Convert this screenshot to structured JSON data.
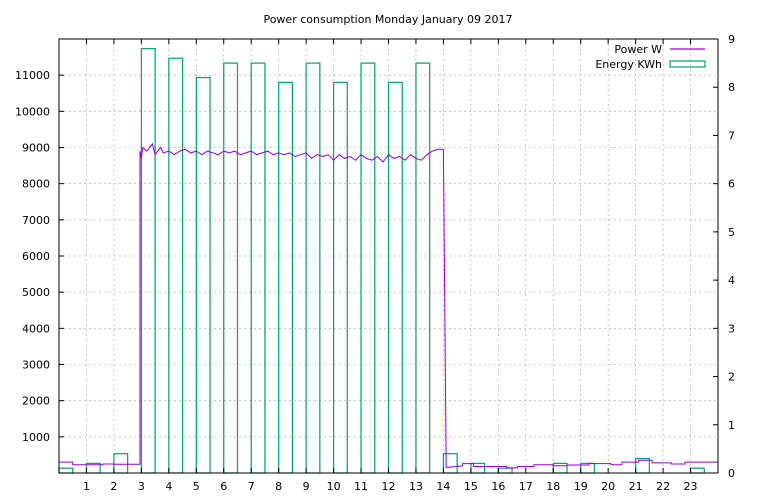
{
  "chart_data": {
    "type": "bar",
    "title": "Power consumption Monday January 09 2017",
    "xlim": [
      0,
      24
    ],
    "ylim": [
      0,
      12000
    ],
    "y2lim": [
      0,
      9
    ],
    "x_ticks": [
      1,
      2,
      3,
      4,
      5,
      6,
      7,
      8,
      9,
      10,
      11,
      12,
      13,
      14,
      15,
      16,
      17,
      18,
      19,
      20,
      21,
      22,
      23
    ],
    "y_ticks": [
      1000,
      2000,
      3000,
      4000,
      5000,
      6000,
      7000,
      8000,
      9000,
      10000,
      11000
    ],
    "y2_ticks": [
      0,
      1,
      2,
      3,
      4,
      5,
      6,
      7,
      8,
      9
    ],
    "grid": true,
    "legend_position": "top-right",
    "colors": {
      "power": "#9400d3",
      "energy": "#009e73"
    },
    "series": [
      {
        "name": "Power W",
        "kind": "line",
        "axis": "y1",
        "x": [
          0,
          0.5,
          0.5,
          1.6,
          1.6,
          2.0,
          2.0,
          2.95,
          2.95,
          3.0,
          3.05,
          3.2,
          3.4,
          3.5,
          3.6,
          3.7,
          3.8,
          4.0,
          4.2,
          4.4,
          4.6,
          4.8,
          5.0,
          5.2,
          5.4,
          5.6,
          5.8,
          6.0,
          6.2,
          6.4,
          6.6,
          6.8,
          7.0,
          7.2,
          7.4,
          7.6,
          7.8,
          8.0,
          8.2,
          8.4,
          8.6,
          8.8,
          9.0,
          9.2,
          9.4,
          9.6,
          9.8,
          10.0,
          10.2,
          10.4,
          10.6,
          10.8,
          11.0,
          11.2,
          11.4,
          11.6,
          11.8,
          12.0,
          12.2,
          12.4,
          12.6,
          12.8,
          13.0,
          13.2,
          13.4,
          13.6,
          13.8,
          14.0,
          14.1,
          14.2,
          14.7,
          14.7,
          15.1,
          15.1,
          16.3,
          16.3,
          16.7,
          16.7,
          17.3,
          17.3,
          18.0,
          18.0,
          18.5,
          18.5,
          19.3,
          19.3,
          20.1,
          20.1,
          20.5,
          20.5,
          21.1,
          21.1,
          21.6,
          21.6,
          22.3,
          22.3,
          22.8,
          22.8,
          24.0
        ],
        "y": [
          300,
          300,
          230,
          230,
          250,
          250,
          240,
          240,
          8900,
          8700,
          9000,
          8900,
          9100,
          8800,
          8900,
          9000,
          8850,
          8900,
          8800,
          8900,
          8950,
          8850,
          8900,
          8800,
          8900,
          8850,
          8800,
          8900,
          8850,
          8900,
          8800,
          8850,
          8900,
          8800,
          8850,
          8900,
          8800,
          8850,
          8800,
          8850,
          8750,
          8800,
          8850,
          8700,
          8800,
          8750,
          8800,
          8650,
          8800,
          8700,
          8750,
          8650,
          8800,
          8700,
          8650,
          8750,
          8600,
          8800,
          8700,
          8750,
          8650,
          8800,
          8700,
          8650,
          8800,
          8900,
          8950,
          8950,
          160,
          160,
          200,
          260,
          260,
          180,
          180,
          140,
          140,
          180,
          180,
          230,
          230,
          200,
          200,
          220,
          220,
          260,
          260,
          230,
          230,
          300,
          300,
          350,
          350,
          280,
          280,
          250,
          250,
          300,
          300
        ]
      },
      {
        "name": "Energy KWh",
        "kind": "bar",
        "axis": "y2",
        "bar_width": 0.5,
        "x": [
          0,
          1,
          2,
          3,
          4,
          5,
          6,
          7,
          8,
          9,
          10,
          11,
          12,
          13,
          14,
          15,
          16,
          17,
          18,
          19,
          20,
          21,
          22,
          23
        ],
        "values": [
          0.1,
          0.2,
          0.4,
          8.8,
          8.6,
          8.2,
          8.5,
          8.5,
          8.1,
          8.5,
          8.1,
          8.5,
          8.1,
          8.5,
          0.4,
          0.2,
          0.1,
          0.0,
          0.2,
          0.2,
          0.0,
          0.3,
          0.0,
          0.1
        ]
      }
    ]
  }
}
